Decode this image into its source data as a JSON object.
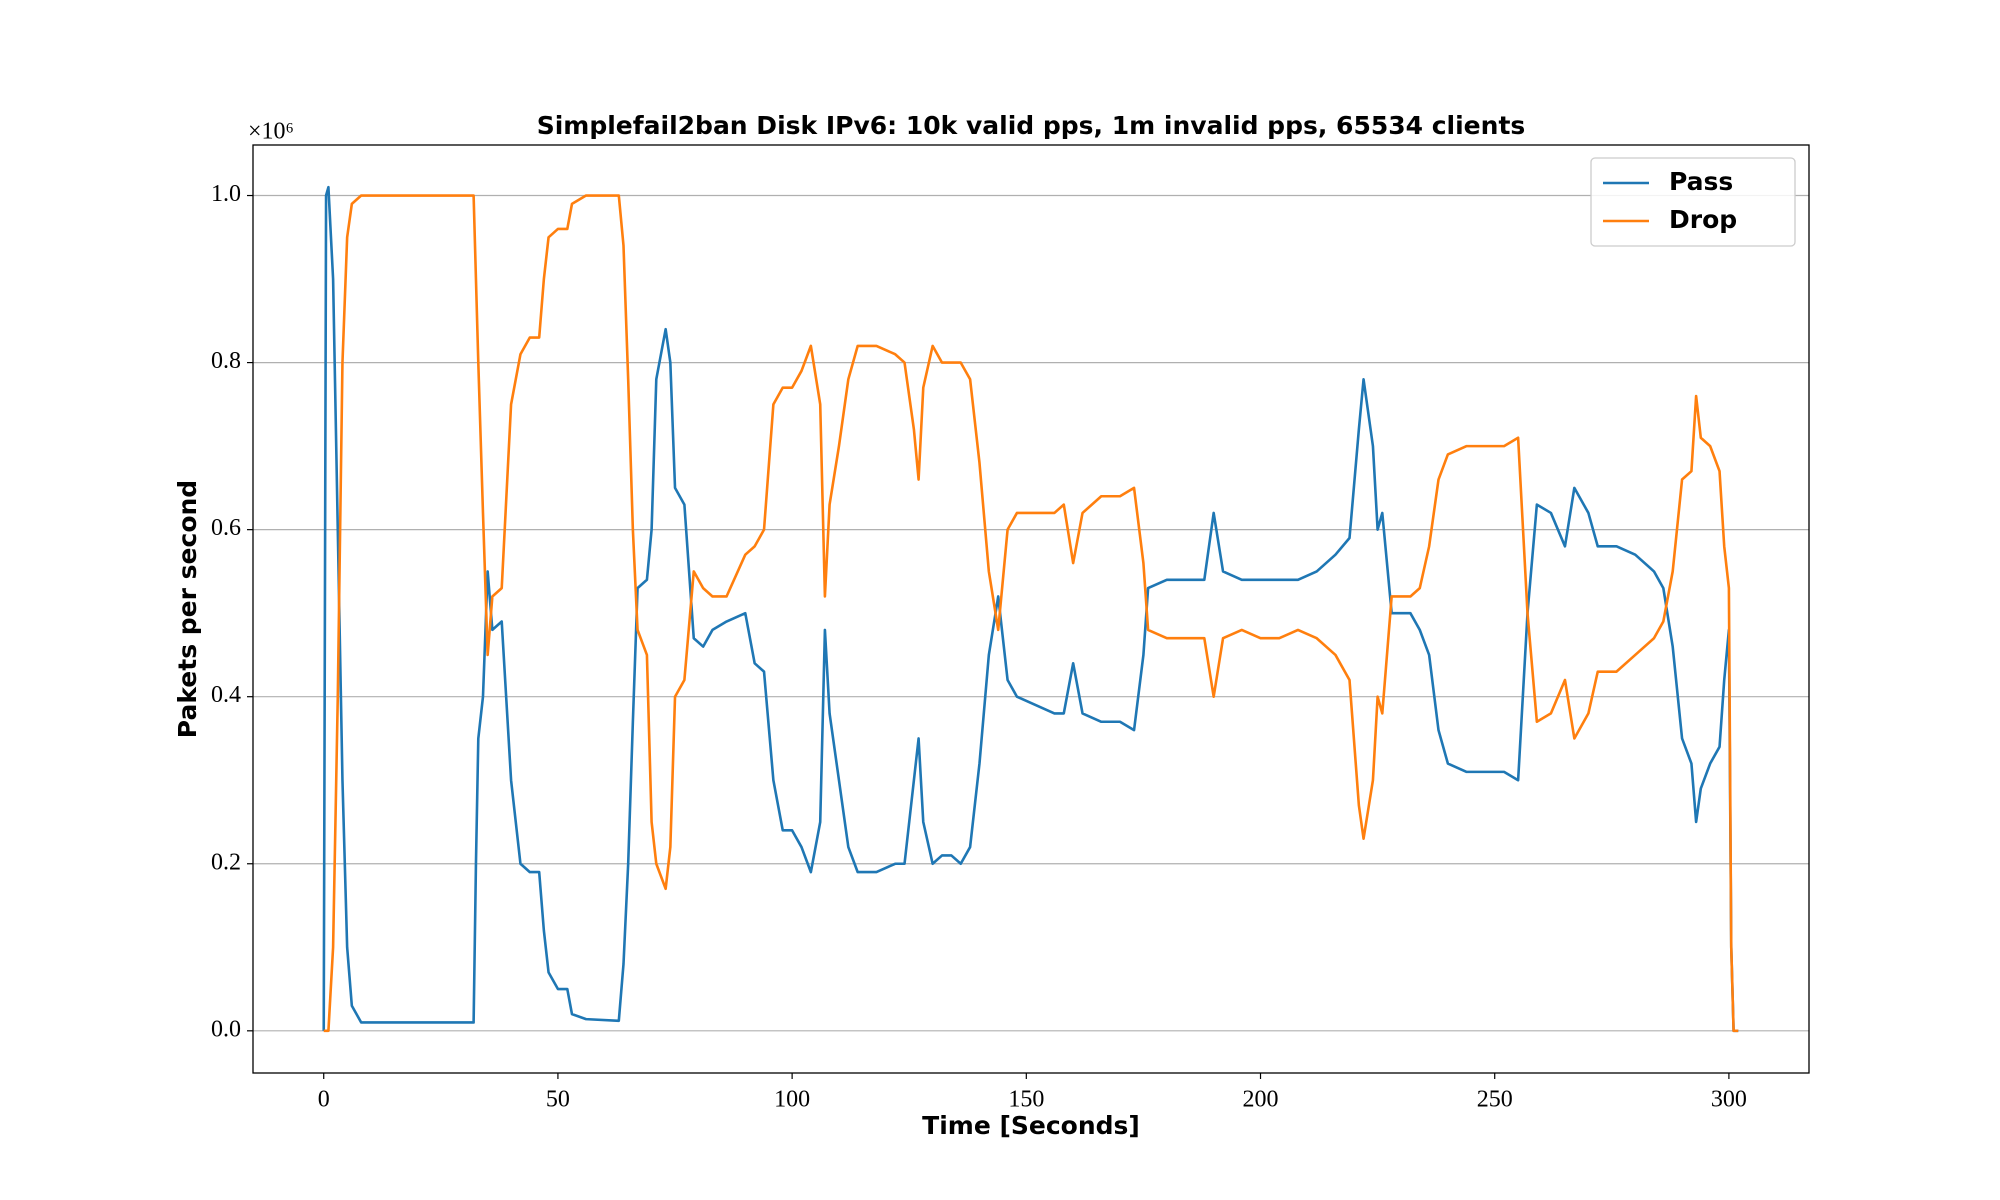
{
  "chart_data": {
    "type": "line",
    "title": "Simplefail2ban Disk IPv6: 10k valid pps, 1m invalid pps, 65534 clients",
    "x_label": "Time [Seconds]",
    "y_label": "Pakets per second",
    "y_offset_label": "×10⁶",
    "xlim": [
      -15.1,
      317.1
    ],
    "ylim": [
      -0.0505,
      1.0605
    ],
    "xticks": [
      0,
      50,
      100,
      150,
      200,
      250,
      300
    ],
    "yticks": [
      {
        "value": 0,
        "label": "0.0"
      },
      0.2,
      0.4,
      0.6,
      0.8,
      {
        "value": 1,
        "label": "1.0"
      }
    ],
    "grid": "y",
    "legend": "upper right",
    "x": [
      0,
      0.5,
      1,
      2,
      3,
      4,
      5,
      6,
      8,
      32,
      32.5,
      33,
      34,
      35,
      36,
      38,
      40,
      42,
      44,
      46,
      47,
      48,
      50,
      52,
      53,
      56,
      63,
      64,
      65,
      66,
      67,
      69,
      70,
      71,
      73,
      74,
      75,
      77,
      79,
      81,
      83,
      86,
      90,
      92,
      94,
      96,
      98,
      100,
      102,
      104,
      106,
      107,
      108,
      110,
      112,
      114,
      118,
      122,
      124,
      126,
      127,
      128,
      130,
      132,
      134,
      136,
      138,
      140,
      142,
      144,
      146,
      148,
      152,
      156,
      158,
      160,
      162,
      166,
      170,
      173,
      175,
      176,
      180,
      184,
      188,
      190,
      192,
      196,
      200,
      204,
      208,
      212,
      216,
      219,
      221,
      222,
      224,
      225,
      226,
      228,
      232,
      234,
      236,
      238,
      240,
      244,
      248,
      252,
      255,
      257,
      259,
      262,
      265,
      267,
      270,
      272,
      276,
      280,
      284,
      286,
      288,
      290,
      292,
      293,
      294,
      296,
      298,
      299,
      300,
      300.5,
      301,
      302
    ],
    "series": [
      {
        "name": "Pass",
        "color": "#1f77b4",
        "values": [
          0,
          1.0,
          1.01,
          0.9,
          0.6,
          0.3,
          0.1,
          0.03,
          0.01,
          0.01,
          0.2,
          0.35,
          0.4,
          0.55,
          0.48,
          0.49,
          0.3,
          0.2,
          0.19,
          0.19,
          0.12,
          0.07,
          0.05,
          0.05,
          0.02,
          0.014,
          0.012,
          0.08,
          0.2,
          0.37,
          0.53,
          0.54,
          0.6,
          0.78,
          0.84,
          0.8,
          0.65,
          0.63,
          0.47,
          0.46,
          0.48,
          0.49,
          0.5,
          0.44,
          0.43,
          0.3,
          0.24,
          0.24,
          0.22,
          0.19,
          0.25,
          0.48,
          0.38,
          0.3,
          0.22,
          0.19,
          0.19,
          0.2,
          0.2,
          0.3,
          0.35,
          0.25,
          0.2,
          0.21,
          0.21,
          0.2,
          0.22,
          0.32,
          0.45,
          0.52,
          0.42,
          0.4,
          0.39,
          0.38,
          0.38,
          0.44,
          0.38,
          0.37,
          0.37,
          0.36,
          0.45,
          0.53,
          0.54,
          0.54,
          0.54,
          0.62,
          0.55,
          0.54,
          0.54,
          0.54,
          0.54,
          0.55,
          0.57,
          0.59,
          0.72,
          0.78,
          0.7,
          0.6,
          0.62,
          0.5,
          0.5,
          0.48,
          0.45,
          0.36,
          0.32,
          0.31,
          0.31,
          0.31,
          0.3,
          0.5,
          0.63,
          0.62,
          0.58,
          0.65,
          0.62,
          0.58,
          0.58,
          0.57,
          0.55,
          0.53,
          0.46,
          0.35,
          0.32,
          0.25,
          0.29,
          0.32,
          0.34,
          0.42,
          0.48,
          0.1,
          0,
          0
        ]
      },
      {
        "name": "Drop",
        "color": "#ff7f0e",
        "values": [
          0,
          0,
          0,
          0.1,
          0.4,
          0.8,
          0.95,
          0.99,
          1.0,
          1.0,
          0.9,
          0.8,
          0.62,
          0.45,
          0.52,
          0.53,
          0.75,
          0.81,
          0.83,
          0.83,
          0.9,
          0.95,
          0.96,
          0.96,
          0.99,
          1.0,
          1.0,
          0.94,
          0.78,
          0.6,
          0.48,
          0.45,
          0.25,
          0.2,
          0.17,
          0.22,
          0.4,
          0.42,
          0.55,
          0.53,
          0.52,
          0.52,
          0.57,
          0.58,
          0.6,
          0.75,
          0.77,
          0.77,
          0.79,
          0.82,
          0.75,
          0.52,
          0.63,
          0.7,
          0.78,
          0.82,
          0.82,
          0.81,
          0.8,
          0.72,
          0.66,
          0.77,
          0.82,
          0.8,
          0.8,
          0.8,
          0.78,
          0.68,
          0.55,
          0.48,
          0.6,
          0.62,
          0.62,
          0.62,
          0.63,
          0.56,
          0.62,
          0.64,
          0.64,
          0.65,
          0.56,
          0.48,
          0.47,
          0.47,
          0.47,
          0.4,
          0.47,
          0.48,
          0.47,
          0.47,
          0.48,
          0.47,
          0.45,
          0.42,
          0.27,
          0.23,
          0.3,
          0.4,
          0.38,
          0.52,
          0.52,
          0.53,
          0.58,
          0.66,
          0.69,
          0.7,
          0.7,
          0.7,
          0.71,
          0.5,
          0.37,
          0.38,
          0.42,
          0.35,
          0.38,
          0.43,
          0.43,
          0.45,
          0.47,
          0.49,
          0.55,
          0.66,
          0.67,
          0.76,
          0.71,
          0.7,
          0.67,
          0.58,
          0.53,
          0.1,
          0,
          0
        ]
      }
    ]
  }
}
